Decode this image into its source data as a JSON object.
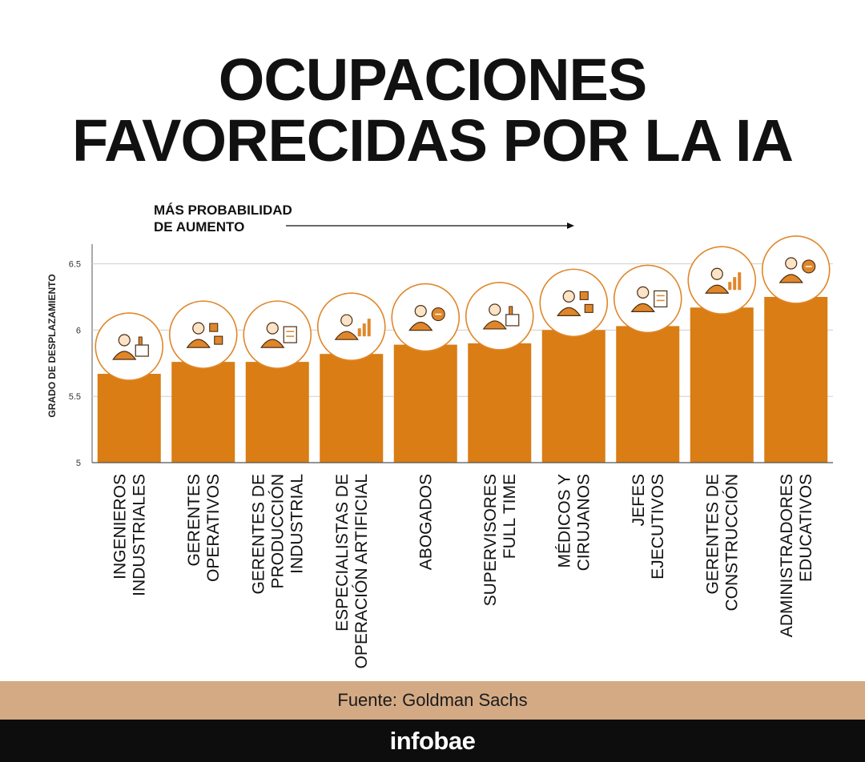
{
  "title_lines": [
    "OCUPACIONES",
    "FAVORECIDAS POR LA IA"
  ],
  "annotation_lines": [
    "MÁS PROBABILIDAD",
    "DE AUMENTO"
  ],
  "source": "Fuente: Goldman Sachs",
  "brand": "infobae",
  "colors": {
    "bar": "#d97d14",
    "icon_ring": "#e0862a",
    "source_band": "#d4aa85",
    "brand_band": "#0d0d0d"
  },
  "chart_data": {
    "type": "bar",
    "ylabel": "GRADO DE DESPLAZAMIENTO",
    "ylim": [
      5,
      6.6
    ],
    "yticks": [
      5,
      5.5,
      6,
      6.5
    ],
    "grid": true,
    "categories": [
      [
        "INGENIEROS",
        "INDUSTRIALES"
      ],
      [
        "GERENTES",
        "OPERATIVOS"
      ],
      [
        "GERENTES DE",
        "PRODUCCIÓN",
        "INDUSTRIAL"
      ],
      [
        "ESPECIALISTAS DE",
        "OPERACIÓN ARTIFICIAL"
      ],
      [
        "ABOGADOS"
      ],
      [
        "SUPERVISORES",
        "FULL TIME"
      ],
      [
        "MÉDICOS Y",
        "CIRUJANOS"
      ],
      [
        "JEFES",
        "EJECUTIVOS"
      ],
      [
        "GERENTES DE",
        "CONSTRUCCIÓN"
      ],
      [
        "ADMINISTRADORES",
        "EDUCATIVOS"
      ]
    ],
    "values": [
      5.67,
      5.76,
      5.76,
      5.82,
      5.89,
      5.9,
      6.0,
      6.03,
      6.17,
      6.25
    ],
    "icons": [
      "industrial-engineer-icon",
      "operations-manager-icon",
      "factory-worker-icon",
      "ai-chip-icon",
      "lawyer-gavel-icon",
      "supervisor-clipboard-icon",
      "doctor-icon",
      "executive-growth-icon",
      "construction-manager-icon",
      "education-administrator-icon"
    ]
  }
}
